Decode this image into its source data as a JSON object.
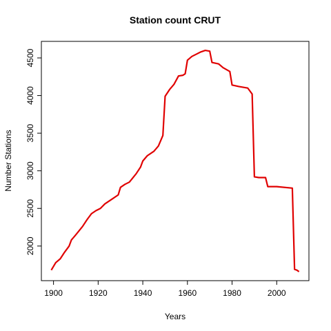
{
  "chart_data": {
    "type": "line",
    "title": "Station count CRUT",
    "x_label": "Years",
    "y_label": "Number Stations",
    "x": [
      1899,
      1901,
      1903,
      1905,
      1907,
      1908,
      1910,
      1913,
      1915,
      1917,
      1919,
      1921,
      1923,
      1926,
      1929,
      1930,
      1932,
      1934,
      1937,
      1939,
      1940,
      1942,
      1945,
      1947,
      1949,
      1950,
      1952,
      1954,
      1956,
      1958,
      1959,
      1960,
      1962,
      1964,
      1966,
      1968,
      1970,
      1971,
      1974,
      1976,
      1979,
      1980,
      1983,
      1985,
      1987,
      1989,
      1990,
      1992,
      1995,
      1996,
      2000,
      2007,
      2008,
      2009,
      2010
    ],
    "series": [
      {
        "color": "#e00000",
        "values": [
          1680,
          1780,
          1830,
          1920,
          2000,
          2080,
          2150,
          2260,
          2350,
          2430,
          2470,
          2500,
          2560,
          2620,
          2680,
          2780,
          2820,
          2850,
          2960,
          3050,
          3130,
          3200,
          3260,
          3330,
          3470,
          3990,
          4080,
          4150,
          4260,
          4270,
          4290,
          4470,
          4520,
          4550,
          4580,
          4600,
          4590,
          4440,
          4420,
          4370,
          4320,
          4140,
          4120,
          4110,
          4100,
          4020,
          2920,
          2910,
          2910,
          2790,
          2790,
          2770,
          1690,
          1680,
          1660
        ]
      }
    ],
    "xlim": [
      1894.56,
      2014.44
    ],
    "ylim": [
      1540,
      4720
    ],
    "xticks": [
      1900,
      1920,
      1940,
      1960,
      1980,
      2000
    ],
    "yticks": [
      2000,
      2500,
      3000,
      3500,
      4000,
      4500
    ]
  }
}
